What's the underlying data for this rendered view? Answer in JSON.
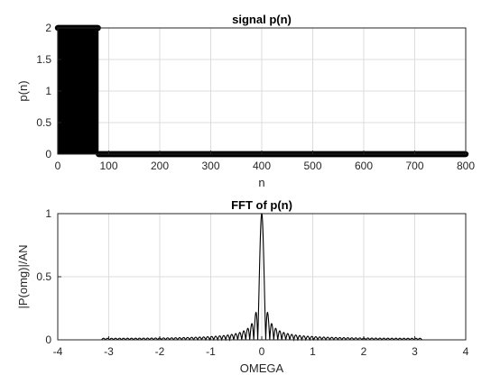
{
  "chart_data": [
    {
      "type": "scatter",
      "title": "signal p(n)",
      "xlabel": "n",
      "ylabel": "p(n)",
      "xlim": [
        0,
        800
      ],
      "ylim": [
        0,
        2
      ],
      "xticks": [
        0,
        100,
        200,
        300,
        400,
        500,
        600,
        700,
        800
      ],
      "yticks": [
        0,
        0.5,
        1,
        1.5,
        2
      ],
      "xtick_labels": [
        "0",
        "100",
        "200",
        "300",
        "400",
        "500",
        "600",
        "700",
        "800"
      ],
      "ytick_labels": [
        "0",
        "0.5",
        "1",
        "1.5",
        "2"
      ],
      "grid": true,
      "series": [
        {
          "marker": "filled-circle",
          "style": "stem",
          "segments": [
            {
              "x_start": 0,
              "x_end": 80,
              "y": 2
            },
            {
              "x_start": 80,
              "x_end": 800,
              "y": 0
            }
          ]
        }
      ]
    },
    {
      "type": "line",
      "title": "FFT of p(n)",
      "xlabel": "OMEGA",
      "ylabel": "|P(omg)|/AN",
      "xlim": [
        -4,
        4
      ],
      "ylim": [
        0,
        1
      ],
      "xticks": [
        -4,
        -3,
        -2,
        -1,
        0,
        1,
        2,
        3,
        4
      ],
      "yticks": [
        0,
        0.5,
        1
      ],
      "xtick_labels": [
        "-4",
        "-3",
        "-2",
        "-1",
        "0",
        "1",
        "2",
        "3",
        "4"
      ],
      "ytick_labels": [
        "0",
        "0.5",
        "1"
      ],
      "grid": true,
      "series": [
        {
          "function": "abs(sin(40*w)/(80*sin(w/2)))",
          "x_range": [
            -3.14,
            3.14
          ],
          "peak": {
            "x": 0,
            "y": 1
          },
          "first_sidelobe": {
            "x": 0.11,
            "y": 0.22
          }
        }
      ]
    }
  ]
}
